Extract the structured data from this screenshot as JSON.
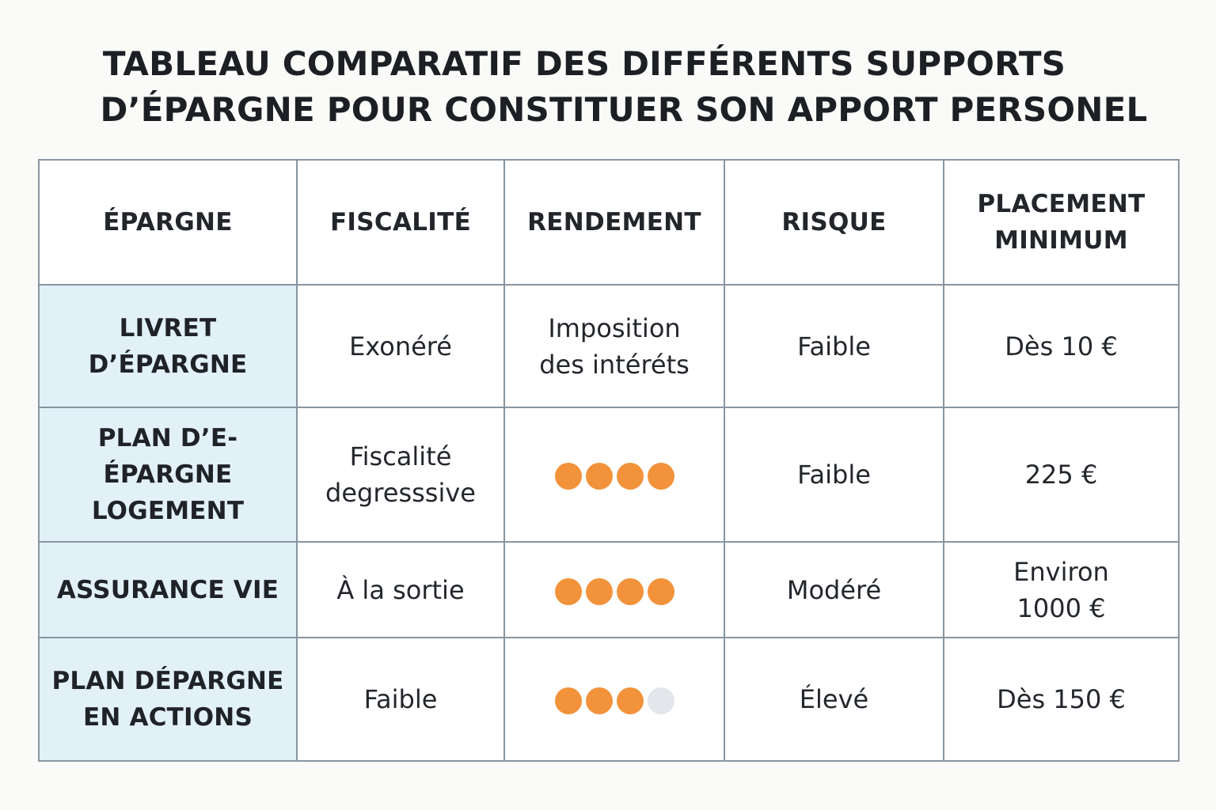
{
  "title": {
    "line1": "TABLEAU COMPARATIF DES DIFFÉRENTS SUPPORTS",
    "line2": "D’ÉPARGNE POUR CONSTITUER SON APPORT PERSONEL"
  },
  "colors": {
    "rowhead_bg": "#e2f1f8",
    "dot_filled": "#f2923a",
    "dot_empty": "#e3e6ea",
    "border": "#8895a0"
  },
  "table": {
    "headers": [
      "ÉPARGNE",
      "FISCALITÉ",
      "RENDEMENT",
      "RISQUE",
      "PLACEMENT MINIMUM"
    ],
    "rows": [
      {
        "epargne": "LIVRET D’ÉPARGNE",
        "fiscalite": "Exonéré",
        "rendement_text": "Imposition des intéréts",
        "risque": "Faible",
        "placement": "Dès 10 €"
      },
      {
        "epargne": "PLAN D’E-ÉPARGNE LOGEMENT",
        "fiscalite": "Fiscalité degresssive",
        "rendement_dots": {
          "filled": 4,
          "total": 4
        },
        "risque": "Faible",
        "placement": "225 €"
      },
      {
        "epargne": "ASSURANCE VIE",
        "fiscalite": "À la sortie",
        "rendement_dots": {
          "filled": 4,
          "total": 4
        },
        "risque": "Modéré",
        "placement": "Environ 1000 €"
      },
      {
        "epargne": "PLAN DÉPARGNE EN ACTIONS",
        "fiscalite": "Faible",
        "rendement_dots": {
          "filled": 3,
          "total": 4
        },
        "risque": "Élevé",
        "placement": "Dès 150 €"
      }
    ]
  }
}
